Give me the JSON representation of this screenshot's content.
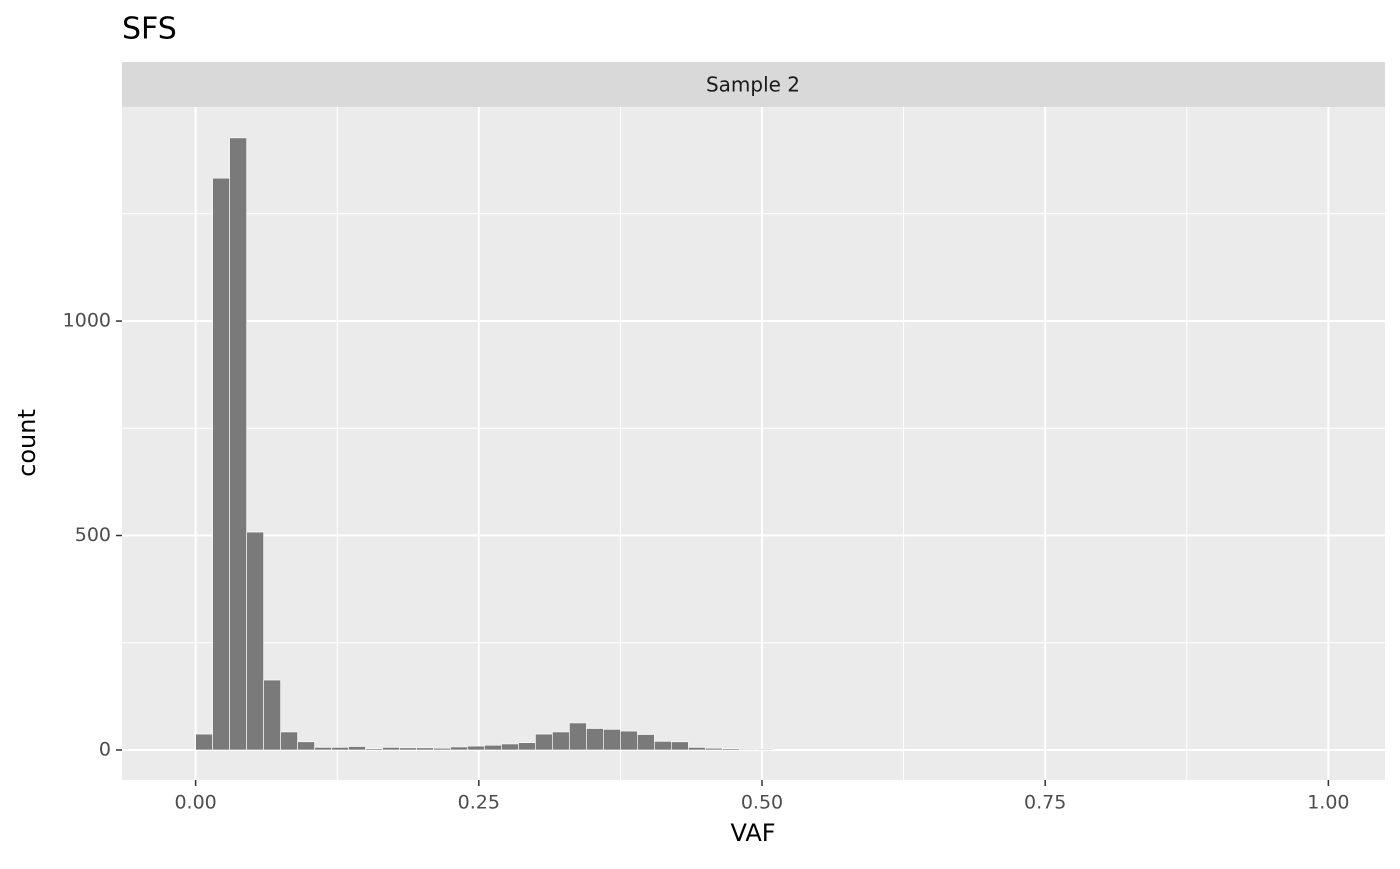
{
  "chart_data": {
    "type": "histogram",
    "title": "SFS",
    "facet": "Sample 2",
    "xlabel": "VAF",
    "ylabel": "count",
    "bins": [
      0,
      0.015,
      0.03,
      0.045,
      0.06,
      0.075,
      0.09,
      0.105,
      0.12,
      0.135,
      0.15,
      0.165,
      0.18,
      0.195,
      0.21,
      0.225,
      0.24,
      0.255,
      0.27,
      0.285,
      0.3,
      0.315,
      0.33,
      0.345,
      0.36,
      0.375,
      0.39,
      0.405,
      0.42,
      0.435,
      0.45,
      0.465,
      0.48,
      0.495,
      0.51,
      0.525,
      0.54,
      0.555,
      0.57,
      0.585,
      0.6,
      0.615,
      0.63,
      0.645,
      0.66,
      0.675
    ],
    "values": [
      37,
      1333,
      1427,
      508,
      163,
      42,
      19,
      6,
      6,
      8,
      3,
      6,
      5,
      5,
      4,
      7,
      9,
      11,
      14,
      17,
      37,
      42,
      63,
      50,
      48,
      44,
      36,
      20,
      19,
      6,
      4,
      3,
      2,
      2,
      0,
      0,
      0,
      0,
      1,
      0,
      0,
      0,
      1,
      0,
      1
    ],
    "color": "#7a7a7a",
    "xlim": [
      -0.065,
      1.05
    ],
    "ylim": [
      -70,
      1499
    ],
    "xticks": [
      {
        "value": 0,
        "label": "0.00"
      },
      {
        "value": 0.25,
        "label": "0.25"
      },
      {
        "value": 0.5,
        "label": "0.50"
      },
      {
        "value": 0.75,
        "label": "0.75"
      },
      {
        "value": 1,
        "label": "1.00"
      }
    ],
    "yticks": [
      0,
      500,
      1000
    ],
    "minor_xticks": [
      0.125,
      0.375,
      0.625,
      0.875
    ],
    "minor_yticks": [
      250,
      750,
      1250
    ],
    "grid": true
  }
}
